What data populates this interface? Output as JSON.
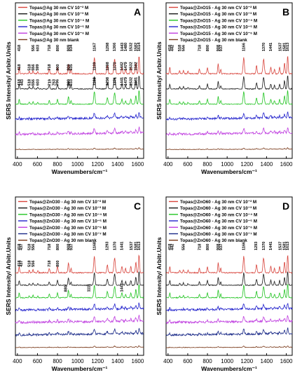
{
  "chart_data": [
    {
      "panel": "A",
      "type": "line",
      "xlabel": "Wavenumbers/cm⁻¹",
      "ylabel": "SERS Intensity/ Arbitr.Units",
      "xlim": [
        380,
        1660
      ],
      "xticks": [
        400,
        600,
        800,
        1000,
        1200,
        1400,
        1600
      ],
      "series": [
        {
          "name": "Topas@Ag 30 nm CV 10⁻² M",
          "color": "#d8443c"
        },
        {
          "name": "Topas@Ag 30 nm CV 10⁻³ M",
          "color": "#1a1a1a"
        },
        {
          "name": "Topas@Ag 30 nm CV 10⁻⁴ M",
          "color": "#22c422"
        },
        {
          "name": "Topas@Ag 30 nm CV 10⁻⁵ M",
          "color": "#2222cc"
        },
        {
          "name": "Topas@Ag 30 nm CV 10⁻⁶ M",
          "color": "#c040e0"
        },
        {
          "name": "Topas@Ag 30 nm blank",
          "color": "#7a3a1a"
        }
      ],
      "peaks": [
        {
          "series": 0,
          "labels": [
            "418",
            "556",
            "603",
            "718",
            "800",
            "909",
            "934",
            "1167",
            "1298",
            "1366",
            "1443",
            "1480",
            "1532",
            "1582",
            "1614"
          ]
        },
        {
          "series": 1,
          "labels": [
            "418",
            "518",
            "556",
            "599",
            "718",
            "800",
            "909",
            "935",
            "1169",
            "1298",
            "1370",
            "1442",
            "1479",
            "1532",
            "1582"
          ]
        },
        {
          "series": 2,
          "labels": [
            "418",
            "443",
            "518",
            "556",
            "603",
            "719",
            "763",
            "796",
            "909",
            "933",
            "1168",
            "1298",
            "1371",
            "1441",
            "1479",
            "1532",
            "1581"
          ]
        }
      ]
    },
    {
      "panel": "B",
      "type": "line",
      "xlabel": "Wavenumbers/cm⁻¹",
      "ylabel": "SERS Intensity/ Arbitr.Units",
      "xlim": [
        380,
        1660
      ],
      "xticks": [
        400,
        600,
        800,
        1000,
        1200,
        1400,
        1600
      ],
      "series": [
        {
          "name": "Topas@ZnO15 - Ag 30 nm CV 10⁻² M",
          "color": "#d8443c"
        },
        {
          "name": "Topas@ZnO15 - Ag 30 nm CV 10⁻³ M",
          "color": "#1a1a1a"
        },
        {
          "name": "Topas@ZnO15 - Ag 30 nm CV 10⁻⁴ M",
          "color": "#22c422"
        },
        {
          "name": "Topas@ZnO15 - Ag 30 nm CV 10⁻⁵ M",
          "color": "#2222cc"
        },
        {
          "name": "Topas@ZnO15 - Ag 30 nm CV 10⁻⁶ M",
          "color": "#c040e0"
        },
        {
          "name": "Topas@ZnO15 - Ag 30 nm blank",
          "color": "#7a3a1a"
        }
      ],
      "peaks": [
        {
          "series": 0,
          "labels": [
            "418",
            "442",
            "518",
            "556",
            "718",
            "800",
            "908",
            "937",
            "1166",
            "1370",
            "1441",
            "1537",
            "1581",
            "1613"
          ]
        }
      ]
    },
    {
      "panel": "C",
      "type": "line",
      "xlabel": "Wavenumbers/cm⁻¹",
      "ylabel": "SERS Intensity/ Arbitr.Units",
      "xlim": [
        380,
        1660
      ],
      "xticks": [
        400,
        600,
        800,
        1000,
        1200,
        1400,
        1600
      ],
      "series": [
        {
          "name": "Topas@ZnO30 - Ag 30 nm CV 10⁻² M",
          "color": "#d8443c"
        },
        {
          "name": "Topas@ZnO30 - Ag 30 nm CV 10⁻³ M",
          "color": "#1a1a1a"
        },
        {
          "name": "Topas@ZnO30 - Ag 30 nm CV 10⁻⁴ M",
          "color": "#22c422"
        },
        {
          "name": "Topas@ZnO30 - Ag 30 nm CV 10⁻⁵ M",
          "color": "#2222cc"
        },
        {
          "name": "Topas@ZnO30 - Ag 30 nm CV 10⁻⁶ M",
          "color": "#c040e0"
        },
        {
          "name": "Topas@ZnO30 - Ag 30 nm CV 10⁻⁷ M",
          "color": "#1a2a88"
        },
        {
          "name": "Topas@ZnO30 - Ag 30 nm blank",
          "color": "#7a3a1a"
        }
      ],
      "peaks": [
        {
          "series": 0,
          "labels": [
            "418",
            "437",
            "518",
            "556",
            "718",
            "800",
            "908",
            "937",
            "1168",
            "1293",
            "1370",
            "1441",
            "1537",
            "1581",
            "1613"
          ]
        },
        {
          "series": 1,
          "labels": [
            "418",
            "437",
            "518",
            "556",
            "718",
            "800"
          ]
        },
        {
          "series": 3,
          "labels": [
            "880",
            "1111",
            "1441"
          ]
        }
      ]
    },
    {
      "panel": "D",
      "type": "line",
      "xlabel": "Wavenumbers/cm⁻¹",
      "ylabel": "SERS Intensity/ Arbitr.Units",
      "xlim": [
        380,
        1660
      ],
      "xticks": [
        400,
        600,
        800,
        1000,
        1200,
        1400,
        1600
      ],
      "series": [
        {
          "name": "Topas@ZnO60 - Ag 30 nm CV 10⁻² M",
          "color": "#d8443c"
        },
        {
          "name": "Topas@ZnO60 - Ag 30 nm CV 10⁻³ M",
          "color": "#1a1a1a"
        },
        {
          "name": "Topas@ZnO60 - Ag 30 nm CV 10⁻⁴ M",
          "color": "#22c422"
        },
        {
          "name": "Topas@ZnO60 - Ag 30 nm CV 10⁻⁵ M",
          "color": "#2222cc"
        },
        {
          "name": "Topas@ZnO60 - Ag 30 nm CV 10⁻⁶ M",
          "color": "#c040e0"
        },
        {
          "name": "Topas@ZnO60 - Ag 30 nm CV 10⁻⁷ M",
          "color": "#1a2a88"
        },
        {
          "name": "Topas@ZnO60 - Ag 30 nm blank",
          "color": "#7a3a1a"
        }
      ],
      "peaks": [
        {
          "series": 0,
          "labels": [
            "418",
            "442",
            "556",
            "718",
            "800",
            "908",
            "937",
            "1166",
            "1293",
            "1370",
            "1441",
            "1537",
            "1581",
            "1613"
          ]
        }
      ]
    }
  ]
}
